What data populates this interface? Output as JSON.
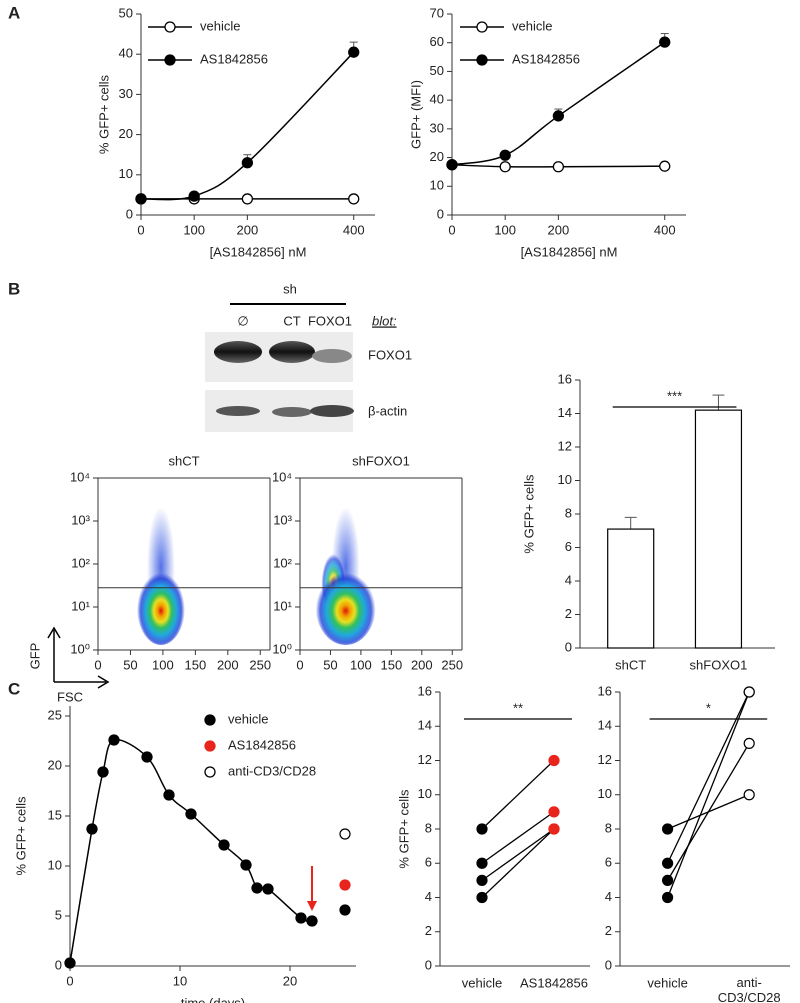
{
  "figure": {
    "panels": [
      "A",
      "B",
      "C"
    ],
    "blot": {
      "group": "sh",
      "lanes": [
        "∅",
        "CT",
        "FOXO1"
      ],
      "label": "blot:",
      "rows": [
        "FOXO1",
        "β-actin"
      ]
    },
    "flow_axes": {
      "y": "GFP",
      "x": "FSC"
    }
  },
  "chart_data": [
    {
      "type": "line",
      "xlabel": "[AS1842856] nM",
      "ylabel": "% GFP+ cells",
      "x": [
        0,
        100,
        200,
        400
      ],
      "xlim": [
        0,
        440
      ],
      "xticks": [
        0,
        100,
        200,
        400
      ],
      "ylim": [
        0,
        50
      ],
      "yticks": [
        0,
        10,
        20,
        30,
        40,
        50
      ],
      "legend": "upper left",
      "series": [
        {
          "name": "vehicle",
          "color": "#ffffff",
          "values": [
            4,
            4,
            4,
            4
          ]
        },
        {
          "name": "AS1842856",
          "color": "#000000",
          "values": [
            4,
            4.7,
            13,
            40.5
          ],
          "errors": [
            0,
            0.4,
            2,
            2.5
          ]
        }
      ]
    },
    {
      "type": "line",
      "xlabel": "[AS1842856] nM",
      "ylabel": "GFP+ (MFI)",
      "x": [
        0,
        100,
        200,
        400
      ],
      "xlim": [
        0,
        440
      ],
      "xticks": [
        0,
        100,
        200,
        400
      ],
      "ylim": [
        0,
        70
      ],
      "yticks": [
        0,
        10,
        20,
        30,
        40,
        50,
        60,
        70
      ],
      "legend": "upper left",
      "series": [
        {
          "name": "vehicle",
          "color": "#ffffff",
          "values": [
            17.5,
            16.8,
            16.8,
            17
          ]
        },
        {
          "name": "AS1842856",
          "color": "#000000",
          "values": [
            17.5,
            20.8,
            34.5,
            60.2
          ],
          "errors": [
            0,
            0.6,
            2.4,
            3
          ]
        }
      ]
    },
    {
      "type": "density",
      "title": "shCT",
      "xlim": [
        0,
        265
      ],
      "xticks": [
        0,
        50,
        100,
        150,
        200,
        250
      ],
      "ylim": [
        1,
        10000
      ],
      "log_y": true,
      "yticks": [
        {
          "value": 1,
          "label": "10⁰"
        },
        {
          "value": 10,
          "label": "10¹"
        },
        {
          "value": 100,
          "label": "10²"
        },
        {
          "value": 1000,
          "label": "10³"
        },
        {
          "value": 10000,
          "label": "10⁴"
        }
      ],
      "gate": 28
    },
    {
      "type": "density",
      "title": "shFOXO1",
      "xlim": [
        0,
        266
      ],
      "xticks": [
        0,
        50,
        100,
        150,
        200,
        250
      ],
      "ylim": [
        1,
        10000
      ],
      "log_y": true,
      "yticks": [
        {
          "value": 1,
          "label": "10⁰"
        },
        {
          "value": 10,
          "label": "10¹"
        },
        {
          "value": 100,
          "label": "10²"
        },
        {
          "value": 1000,
          "label": "10³"
        },
        {
          "value": 10000,
          "label": "10⁴"
        }
      ],
      "gate": 28
    },
    {
      "type": "bar",
      "ylabel": "% GFP+ cells",
      "categories": [
        "shCT",
        "shFOXO1"
      ],
      "values": [
        7.1,
        14.2
      ],
      "errors": [
        0.7,
        0.9
      ],
      "color": "#ffffff",
      "ylim": [
        0,
        16
      ],
      "yticks": [
        0,
        2,
        4,
        6,
        8,
        10,
        12,
        14,
        16
      ],
      "annotation": "***"
    },
    {
      "type": "line",
      "xlabel": "time (days)",
      "ylabel": "% GFP+ cells",
      "x": [
        0,
        2,
        3,
        4,
        7,
        9,
        11,
        14,
        16,
        17,
        18,
        21,
        22
      ],
      "xlim": [
        0,
        26
      ],
      "xticks": [
        0,
        10,
        20
      ],
      "ylim": [
        0,
        26
      ],
      "yticks": [
        0,
        5,
        10,
        15,
        20,
        25
      ],
      "legend": "upper right",
      "end_x": 25,
      "arrow_x": 22,
      "arrow_y": [
        10,
        5.5
      ],
      "arrow_color": "#e8241c",
      "series": [
        {
          "name": "vehicle",
          "color": "#000000",
          "values": [
            0.3,
            13.7,
            19.4,
            22.6,
            20.9,
            17.1,
            15.2,
            12.1,
            10.1,
            7.8,
            7.7,
            4.8,
            4.5
          ],
          "end_value": 5.6
        },
        {
          "name": "AS1842856",
          "color": "#e8241c",
          "end_value": 8.1
        },
        {
          "name": "anti-CD3/CD28",
          "color": "#ffffff",
          "end_value": 13.2
        }
      ]
    },
    {
      "type": "paired",
      "ylabel": "% GFP+ cells",
      "categories": [
        "vehicle",
        "AS1842856"
      ],
      "colors": [
        "#000000",
        "#e8241c"
      ],
      "pairs": [
        [
          8,
          12
        ],
        [
          6,
          9
        ],
        [
          5,
          8
        ],
        [
          4,
          8
        ]
      ],
      "ylim": [
        0,
        16
      ],
      "yticks": [
        0,
        2,
        4,
        6,
        8,
        10,
        12,
        14,
        16
      ],
      "annotation": "**"
    },
    {
      "type": "paired",
      "categories": [
        "vehicle",
        "anti-\nCD3/CD28"
      ],
      "colors": [
        "#000000",
        "#ffffff"
      ],
      "pairs": [
        [
          8,
          10
        ],
        [
          6,
          16
        ],
        [
          5,
          13
        ],
        [
          4,
          16
        ]
      ],
      "ylim": [
        0,
        16
      ],
      "yticks": [
        0,
        2,
        4,
        6,
        8,
        10,
        12,
        14,
        16
      ],
      "annotation": "*"
    }
  ]
}
